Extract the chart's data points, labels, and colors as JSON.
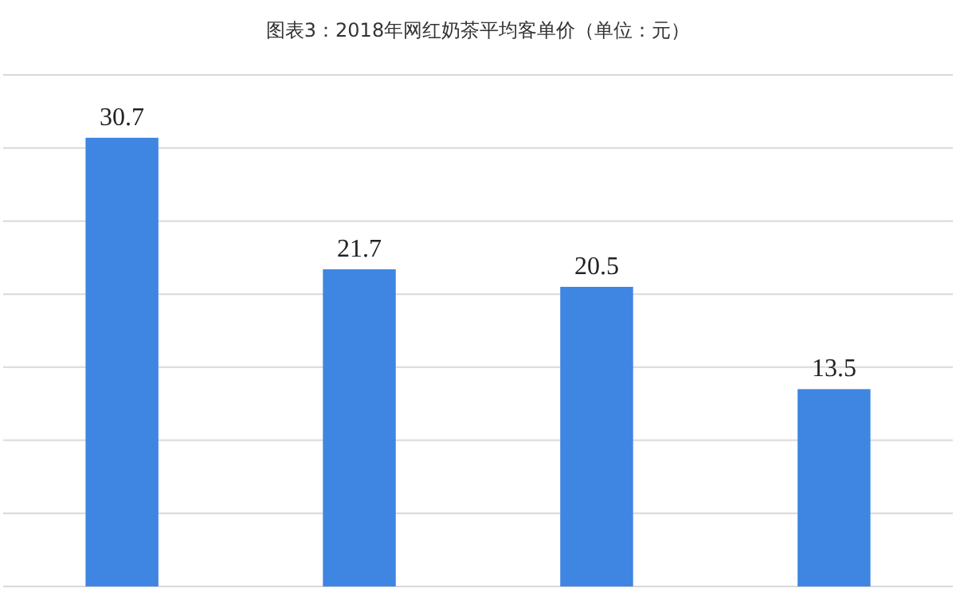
{
  "chart_data": {
    "type": "bar",
    "title": "图表3：2018年网红奶茶平均客单价（单位：元）",
    "categories": [
      null,
      null,
      null,
      null
    ],
    "values": [
      30.7,
      21.7,
      20.5,
      13.5
    ],
    "color": "#3f86e2",
    "ylim": [
      0,
      35
    ],
    "yticks": [
      {
        "value": 0,
        "label": null
      },
      {
        "value": 5,
        "label": null
      },
      {
        "value": 10,
        "label": null
      },
      {
        "value": 15,
        "label": null
      },
      {
        "value": 20,
        "label": null
      },
      {
        "value": 25,
        "label": null
      },
      {
        "value": 30,
        "label": null
      },
      {
        "value": 35,
        "label": null
      }
    ],
    "grid": "y",
    "data_labels": true
  }
}
